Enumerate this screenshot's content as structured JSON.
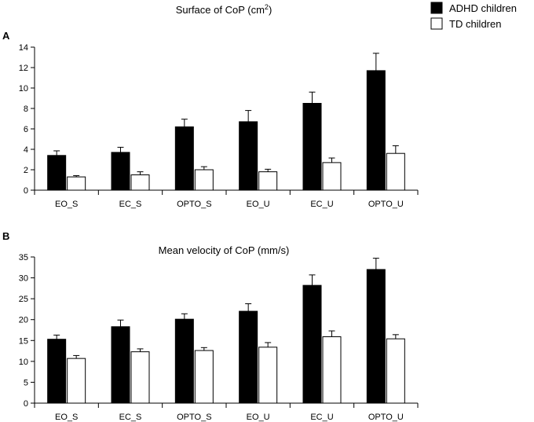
{
  "legend": {
    "series_a": "ADHD children",
    "series_b": "TD children"
  },
  "colors": {
    "series_a": "#000000",
    "series_b": "#ffffff",
    "axis": "#000000"
  },
  "chart_data": [
    {
      "panel": "A",
      "type": "bar",
      "title": "Surface of CoP (cm",
      "title_sup": "2",
      "title_end": ")",
      "xlabel": "",
      "ylabel": "",
      "categories": [
        "EO_S",
        "EC_S",
        "OPTO_S",
        "EO_U",
        "EC_U",
        "OPTO_U"
      ],
      "ylim": [
        0,
        14
      ],
      "yticks": [
        0,
        2,
        4,
        6,
        8,
        10,
        12,
        14
      ],
      "series": [
        {
          "name": "ADHD children",
          "values": [
            3.4,
            3.7,
            6.2,
            6.7,
            8.5,
            11.7
          ],
          "errors": [
            0.45,
            0.5,
            0.75,
            1.1,
            1.1,
            1.7
          ]
        },
        {
          "name": "TD children",
          "values": [
            1.3,
            1.5,
            2.0,
            1.8,
            2.7,
            3.6
          ],
          "errors": [
            0.12,
            0.3,
            0.3,
            0.25,
            0.45,
            0.75
          ]
        }
      ]
    },
    {
      "panel": "B",
      "type": "bar",
      "title": "Mean velocity of CoP (mm/s)",
      "xlabel": "",
      "ylabel": "",
      "categories": [
        "EO_S",
        "EC_S",
        "OPTO_S",
        "EO_U",
        "EC_U",
        "OPTO_U"
      ],
      "ylim": [
        0,
        35
      ],
      "yticks": [
        0,
        5,
        10,
        15,
        20,
        25,
        30,
        35
      ],
      "series": [
        {
          "name": "ADHD children",
          "values": [
            15.3,
            18.3,
            20.1,
            22.0,
            28.2,
            32.0
          ],
          "errors": [
            1.0,
            1.6,
            1.3,
            1.8,
            2.5,
            2.7
          ]
        },
        {
          "name": "TD children",
          "values": [
            10.7,
            12.3,
            12.6,
            13.4,
            15.9,
            15.4
          ],
          "errors": [
            0.7,
            0.7,
            0.7,
            1.1,
            1.4,
            1.0
          ]
        }
      ]
    }
  ]
}
